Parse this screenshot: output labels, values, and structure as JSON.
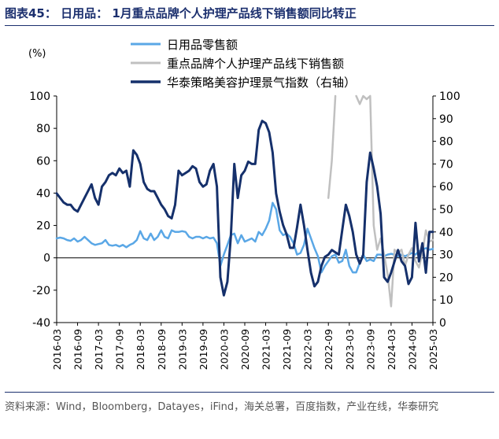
{
  "figure": {
    "title": "图表45：  日用品：  1月重点品牌个人护理产品线下销售额同比转正",
    "source": "资料来源：Wind，Bloomberg，Datayes，iFind，海关总署，百度指数，产业在线，华泰研究"
  },
  "chart_data": {
    "type": "line",
    "title": "",
    "y_unit_label": "(%)",
    "xlabel": "",
    "ylabel": "",
    "ylim_left": [
      -40,
      100
    ],
    "yticks_left": [
      -40,
      -20,
      0,
      20,
      40,
      60,
      80,
      100
    ],
    "ylim_right": [
      0,
      100
    ],
    "yticks_right": [
      0,
      10,
      20,
      30,
      40,
      50,
      60,
      70,
      80,
      90,
      100
    ],
    "x_start": "2016-03",
    "x_end": "2025-03",
    "x_tick_labels": [
      "2016-03",
      "2016-09",
      "2017-03",
      "2017-09",
      "2018-03",
      "2018-09",
      "2019-03",
      "2019-09",
      "2020-03",
      "2020-09",
      "2021-03",
      "2021-09",
      "2022-03",
      "2022-09",
      "2023-03",
      "2023-09",
      "2024-03",
      "2024-09",
      "2025-03"
    ],
    "grid": false,
    "legend_position": "top-center",
    "zero_line": true,
    "series": [
      {
        "name": "日用品零售额",
        "axis": "left",
        "color": "#5aa7e6",
        "width": 2.5,
        "points": [
          [
            "2016-03",
            12
          ],
          [
            "2016-04",
            12.5
          ],
          [
            "2016-05",
            12
          ],
          [
            "2016-06",
            11
          ],
          [
            "2016-07",
            10.5
          ],
          [
            "2016-08",
            12
          ],
          [
            "2016-09",
            10
          ],
          [
            "2016-10",
            11
          ],
          [
            "2016-11",
            13
          ],
          [
            "2016-12",
            11
          ],
          [
            "2017-01",
            9
          ],
          [
            "2017-02",
            8
          ],
          [
            "2017-03",
            8.5
          ],
          [
            "2017-04",
            9
          ],
          [
            "2017-05",
            11
          ],
          [
            "2017-06",
            8
          ],
          [
            "2017-07",
            7.5
          ],
          [
            "2017-08",
            8
          ],
          [
            "2017-09",
            7
          ],
          [
            "2017-10",
            8
          ],
          [
            "2017-11",
            6.5
          ],
          [
            "2017-12",
            8
          ],
          [
            "2018-01",
            9
          ],
          [
            "2018-02",
            11
          ],
          [
            "2018-03",
            16.5
          ],
          [
            "2018-04",
            12
          ],
          [
            "2018-05",
            11
          ],
          [
            "2018-06",
            15
          ],
          [
            "2018-07",
            11
          ],
          [
            "2018-08",
            13
          ],
          [
            "2018-09",
            17
          ],
          [
            "2018-10",
            13
          ],
          [
            "2018-11",
            12
          ],
          [
            "2018-12",
            17
          ],
          [
            "2019-01",
            16
          ],
          [
            "2019-02",
            16
          ],
          [
            "2019-03",
            16.5
          ],
          [
            "2019-04",
            16
          ],
          [
            "2019-05",
            13
          ],
          [
            "2019-06",
            12
          ],
          [
            "2019-07",
            13
          ],
          [
            "2019-08",
            13
          ],
          [
            "2019-09",
            12
          ],
          [
            "2019-10",
            13
          ],
          [
            "2019-11",
            12
          ],
          [
            "2019-12",
            12.5
          ],
          [
            "2020-01",
            9
          ],
          [
            "2020-02",
            -5
          ],
          [
            "2020-03",
            2
          ],
          [
            "2020-04",
            8
          ],
          [
            "2020-05",
            14
          ],
          [
            "2020-06",
            15
          ],
          [
            "2020-07",
            9
          ],
          [
            "2020-08",
            14
          ],
          [
            "2020-09",
            10
          ],
          [
            "2020-10",
            11
          ],
          [
            "2020-11",
            12
          ],
          [
            "2020-12",
            10
          ],
          [
            "2021-01",
            16
          ],
          [
            "2021-02",
            14
          ],
          [
            "2021-03",
            18
          ],
          [
            "2021-04",
            23
          ],
          [
            "2021-05",
            34
          ],
          [
            "2021-06",
            30
          ],
          [
            "2021-07",
            17
          ],
          [
            "2021-08",
            14
          ],
          [
            "2021-09",
            15
          ],
          [
            "2021-10",
            13
          ],
          [
            "2021-11",
            9
          ],
          [
            "2021-12",
            2
          ],
          [
            "2022-01",
            3
          ],
          [
            "2022-02",
            8
          ],
          [
            "2022-03",
            18
          ],
          [
            "2022-04",
            12
          ],
          [
            "2022-05",
            6
          ],
          [
            "2022-06",
            1
          ],
          [
            "2022-07",
            -9
          ],
          [
            "2022-08",
            -5
          ],
          [
            "2022-09",
            -2
          ],
          [
            "2022-10",
            1
          ],
          [
            "2022-11",
            2
          ],
          [
            "2022-12",
            -3
          ],
          [
            "2023-01",
            -2
          ],
          [
            "2023-02",
            5
          ],
          [
            "2023-03",
            -5
          ],
          [
            "2023-04",
            -9
          ],
          [
            "2023-05",
            -9
          ],
          [
            "2023-06",
            -3
          ],
          [
            "2023-07",
            2
          ],
          [
            "2023-08",
            -2
          ],
          [
            "2023-09",
            -1
          ],
          [
            "2023-10",
            -2
          ],
          [
            "2023-11",
            2
          ],
          [
            "2023-12",
            2
          ],
          [
            "2024-01",
            1
          ],
          [
            "2024-02",
            2
          ],
          [
            "2024-03",
            2.5
          ],
          [
            "2024-04",
            2
          ],
          [
            "2024-05",
            1
          ],
          [
            "2024-06",
            2
          ],
          [
            "2024-07",
            1
          ],
          [
            "2024-08",
            2
          ],
          [
            "2024-09",
            3
          ],
          [
            "2024-10",
            2
          ],
          [
            "2024-11",
            4
          ],
          [
            "2024-12",
            5
          ],
          [
            "2025-01",
            6
          ],
          [
            "2025-02",
            5
          ],
          [
            "2025-03",
            5.5
          ]
        ]
      },
      {
        "name": "重点品牌个人护理产品线下销售额",
        "axis": "left",
        "color": "#c0c0c0",
        "width": 2.5,
        "points": [
          [
            "2022-09",
            37
          ],
          [
            "2022-10",
            60
          ],
          [
            "2022-11",
            100
          ],
          [
            "2022-12",
            null
          ],
          [
            "2023-01",
            null
          ],
          [
            "2023-02",
            null
          ],
          [
            "2023-03",
            null
          ],
          [
            "2023-04",
            null
          ],
          [
            "2023-05",
            100
          ],
          [
            "2023-06",
            95
          ],
          [
            "2023-07",
            100
          ],
          [
            "2023-08",
            98
          ],
          [
            "2023-09",
            100
          ],
          [
            "2023-10",
            20
          ],
          [
            "2023-11",
            5
          ],
          [
            "2023-12",
            12
          ],
          [
            "2024-01",
            2
          ],
          [
            "2024-02",
            -10
          ],
          [
            "2024-03",
            -30
          ],
          [
            "2024-04",
            5
          ],
          [
            "2024-05",
            3
          ],
          [
            "2024-06",
            5
          ],
          [
            "2024-07",
            -5
          ],
          [
            "2024-08",
            2
          ],
          [
            "2024-09",
            6
          ],
          [
            "2024-10",
            -2
          ],
          [
            "2024-11",
            -6
          ],
          [
            "2024-12",
            3
          ],
          [
            "2025-01",
            17
          ],
          [
            "2025-02",
            10
          ],
          [
            "2025-03",
            11
          ]
        ]
      },
      {
        "name": "华泰策略美容护理景气指数（右轴）",
        "axis": "right",
        "color": "#15306b",
        "width": 3,
        "points": [
          [
            "2016-03",
            57
          ],
          [
            "2016-04",
            55
          ],
          [
            "2016-05",
            53
          ],
          [
            "2016-06",
            52
          ],
          [
            "2016-07",
            52
          ],
          [
            "2016-08",
            50
          ],
          [
            "2016-09",
            49
          ],
          [
            "2016-10",
            52
          ],
          [
            "2016-11",
            55
          ],
          [
            "2016-12",
            58
          ],
          [
            "2017-01",
            61
          ],
          [
            "2017-02",
            55
          ],
          [
            "2017-03",
            52
          ],
          [
            "2017-04",
            60
          ],
          [
            "2017-05",
            62
          ],
          [
            "2017-06",
            65
          ],
          [
            "2017-07",
            66
          ],
          [
            "2017-08",
            65
          ],
          [
            "2017-09",
            68
          ],
          [
            "2017-10",
            66
          ],
          [
            "2017-11",
            67
          ],
          [
            "2017-12",
            60
          ],
          [
            "2018-01",
            76
          ],
          [
            "2018-02",
            74
          ],
          [
            "2018-03",
            70
          ],
          [
            "2018-04",
            62
          ],
          [
            "2018-05",
            59
          ],
          [
            "2018-06",
            58
          ],
          [
            "2018-07",
            58
          ],
          [
            "2018-08",
            55
          ],
          [
            "2018-09",
            52
          ],
          [
            "2018-10",
            50
          ],
          [
            "2018-11",
            47
          ],
          [
            "2018-12",
            46
          ],
          [
            "2019-01",
            52
          ],
          [
            "2019-02",
            67
          ],
          [
            "2019-03",
            65
          ],
          [
            "2019-04",
            66
          ],
          [
            "2019-05",
            67
          ],
          [
            "2019-06",
            69
          ],
          [
            "2019-07",
            68
          ],
          [
            "2019-08",
            62
          ],
          [
            "2019-09",
            60
          ],
          [
            "2019-10",
            61
          ],
          [
            "2019-11",
            67
          ],
          [
            "2019-12",
            70
          ],
          [
            "2020-01",
            60
          ],
          [
            "2020-02",
            20
          ],
          [
            "2020-03",
            12
          ],
          [
            "2020-04",
            18
          ],
          [
            "2020-05",
            38
          ],
          [
            "2020-06",
            70
          ],
          [
            "2020-07",
            55
          ],
          [
            "2020-08",
            65
          ],
          [
            "2020-09",
            67
          ],
          [
            "2020-10",
            71
          ],
          [
            "2020-11",
            70
          ],
          [
            "2020-12",
            70
          ],
          [
            "2021-01",
            85
          ],
          [
            "2021-02",
            89
          ],
          [
            "2021-03",
            88
          ],
          [
            "2021-04",
            84
          ],
          [
            "2021-05",
            75
          ],
          [
            "2021-06",
            57
          ],
          [
            "2021-07",
            49
          ],
          [
            "2021-08",
            43
          ],
          [
            "2021-09",
            39
          ],
          [
            "2021-10",
            33
          ],
          [
            "2021-11",
            33
          ],
          [
            "2021-12",
            42
          ],
          [
            "2022-01",
            52
          ],
          [
            "2022-02",
            43
          ],
          [
            "2022-03",
            32
          ],
          [
            "2022-04",
            22
          ],
          [
            "2022-05",
            16
          ],
          [
            "2022-06",
            18
          ],
          [
            "2022-07",
            25
          ],
          [
            "2022-08",
            29
          ],
          [
            "2022-09",
            30
          ],
          [
            "2022-10",
            32
          ],
          [
            "2022-11",
            31
          ],
          [
            "2022-12",
            30
          ],
          [
            "2023-01",
            41
          ],
          [
            "2023-02",
            52
          ],
          [
            "2023-03",
            47
          ],
          [
            "2023-04",
            40
          ],
          [
            "2023-05",
            30
          ],
          [
            "2023-06",
            26
          ],
          [
            "2023-07",
            30
          ],
          [
            "2023-08",
            62
          ],
          [
            "2023-09",
            75
          ],
          [
            "2023-10",
            68
          ],
          [
            "2023-11",
            60
          ],
          [
            "2023-12",
            48
          ],
          [
            "2024-01",
            20
          ],
          [
            "2024-02",
            18
          ],
          [
            "2024-03",
            22
          ],
          [
            "2024-04",
            27
          ],
          [
            "2024-05",
            32
          ],
          [
            "2024-06",
            27
          ],
          [
            "2024-07",
            25
          ],
          [
            "2024-08",
            17
          ],
          [
            "2024-09",
            20
          ],
          [
            "2024-10",
            44
          ],
          [
            "2024-11",
            27
          ],
          [
            "2024-12",
            35
          ],
          [
            "2025-01",
            22
          ],
          [
            "2025-02",
            40
          ],
          [
            "2025-03",
            40
          ]
        ]
      }
    ]
  }
}
